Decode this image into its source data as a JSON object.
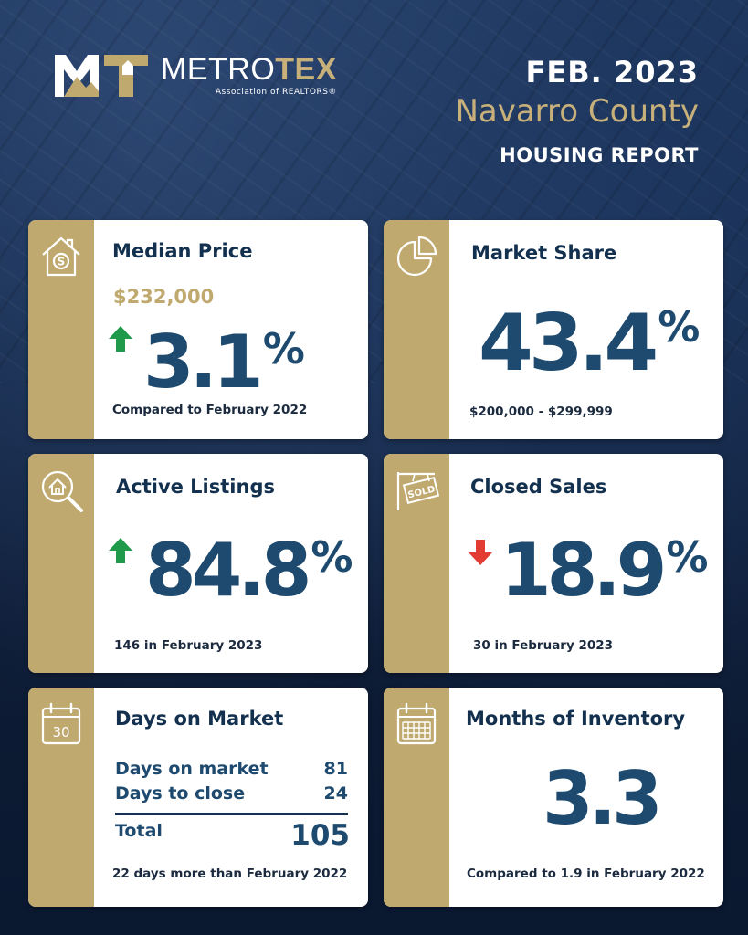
{
  "brand": {
    "name_part1": "METRO",
    "name_part2": "TEX",
    "subtitle": "Association of REALTORS®",
    "colors": {
      "navy": "#13314f",
      "gold": "#c0a96f",
      "number_blue": "#1d4a6e",
      "up_green": "#1f9a4a",
      "down_red": "#e33d33"
    }
  },
  "header": {
    "date": "FEB. 2023",
    "county": "Navarro County",
    "report": "HOUSING REPORT"
  },
  "median_price": {
    "title": "Median Price",
    "price": "$232,000",
    "direction": "up",
    "change": "3.1",
    "unit": "%",
    "note": "Compared to February 2022",
    "icon": "house-dollar-icon"
  },
  "market_share": {
    "title": "Market Share",
    "value": "43.4",
    "unit": "%",
    "note": "$200,000 - $299,999",
    "icon": "pie-chart-icon"
  },
  "active_listings": {
    "title": "Active Listings",
    "direction": "up",
    "change": "84.8",
    "unit": "%",
    "note": "146 in February 2023",
    "icon": "magnifier-house-icon"
  },
  "closed_sales": {
    "title": "Closed Sales",
    "direction": "down",
    "change": "18.9",
    "unit": "%",
    "note": "30 in February 2023",
    "icon": "sold-sign-icon"
  },
  "days_on_market": {
    "title": "Days on Market",
    "icon_label": "30",
    "rows": [
      {
        "label": "Days on market",
        "value": "81"
      },
      {
        "label": "Days to close",
        "value": "24"
      }
    ],
    "total_label": "Total",
    "total_value": "105",
    "note": "22 days more than February 2022",
    "icon": "calendar-30-icon"
  },
  "months_inventory": {
    "title": "Months of Inventory",
    "value": "3.3",
    "note": "Compared to 1.9 in February 2022",
    "icon": "calendar-grid-icon"
  }
}
